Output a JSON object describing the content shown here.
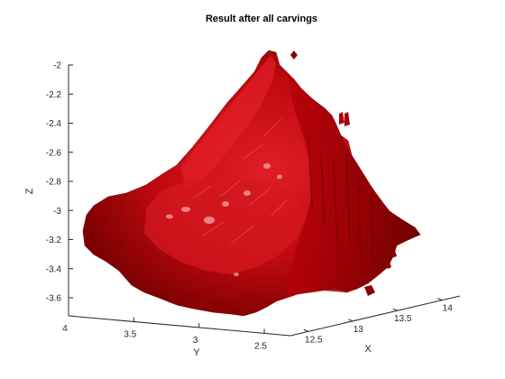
{
  "chart_data": {
    "type": "surface3d",
    "title": "Result after all carvings",
    "xlabel": "X",
    "ylabel": "Y",
    "zlabel": "Z",
    "x_ticks": [
      "12.5",
      "13",
      "13.5",
      "14"
    ],
    "y_ticks": [
      "4",
      "3.5",
      "3",
      "2.5"
    ],
    "z_ticks": [
      "-2",
      "-2.2",
      "-2.4",
      "-2.6",
      "-2.8",
      "-3",
      "-3.2",
      "-3.4",
      "-3.6"
    ],
    "xlim": [
      12.3,
      14.2
    ],
    "ylim": [
      2.3,
      4.0
    ],
    "zlim": [
      -3.7,
      -1.95
    ],
    "grid": false,
    "legend": "none",
    "colors": {
      "surface_base": "#b00000",
      "surface_light": "#e8202a",
      "surface_dark": "#6a0000",
      "highlight": "#f4a8a8"
    }
  }
}
